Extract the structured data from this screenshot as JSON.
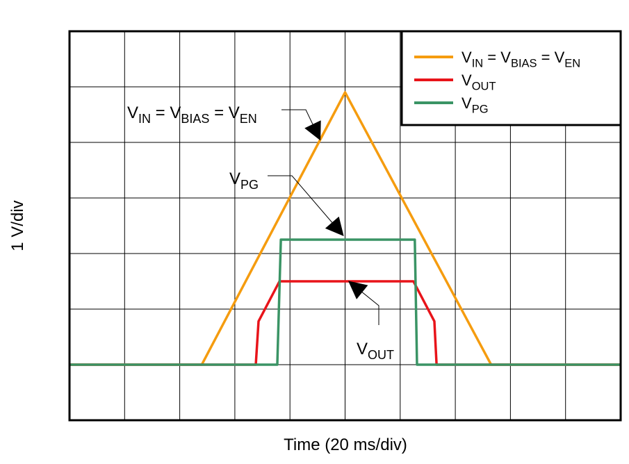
{
  "chart_data": {
    "type": "line",
    "x_label": "Time (20 ms/div)",
    "y_label": "1 V/div",
    "xlim": [
      0,
      200
    ],
    "ylim": [
      -1,
      6
    ],
    "grid": true,
    "xgrid": [
      0,
      20,
      40,
      60,
      80,
      100,
      120,
      140,
      160,
      180,
      200
    ],
    "ygrid": [
      -1,
      0,
      1,
      2,
      3,
      4,
      5,
      6
    ],
    "legend": "upper right",
    "series": [
      {
        "name": [
          "V",
          "IN",
          " = V",
          "BIAS",
          " = V",
          "EN"
        ],
        "color": "#f59c0f",
        "x": [
          0,
          48,
          100,
          153,
          200
        ],
        "values": [
          0,
          0,
          4.9,
          0,
          0
        ]
      },
      {
        "name": [
          "V",
          "OUT"
        ],
        "color": "#e8141a",
        "x": [
          0,
          67.6,
          68.6,
          76.2,
          124.8,
          132.4,
          133.2,
          200
        ],
        "values": [
          0,
          0,
          0.78,
          1.5,
          1.5,
          0.78,
          0,
          0
        ]
      },
      {
        "name": [
          "V",
          "PG"
        ],
        "color": "#3a9465",
        "x": [
          0,
          75.4,
          76.7,
          125.3,
          126.1,
          200
        ],
        "values": [
          0,
          0,
          2.25,
          2.25,
          0,
          0
        ]
      }
    ],
    "annotations": [
      {
        "text": [
          "V",
          "IN",
          " = V",
          "BIAS",
          " = V",
          "EN"
        ]
      },
      {
        "text": [
          "V",
          "PG"
        ]
      },
      {
        "text": [
          "V",
          "OUT"
        ]
      }
    ]
  }
}
